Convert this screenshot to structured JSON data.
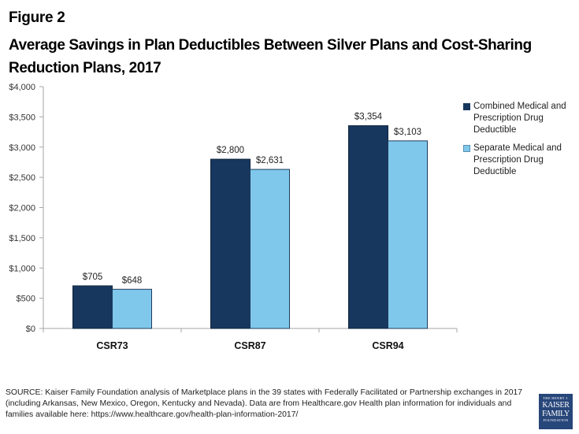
{
  "figure_label": "Figure 2",
  "title": "Average Savings in Plan Deductibles Between Silver Plans and Cost-Sharing Reduction Plans, 2017",
  "chart_data": {
    "type": "bar",
    "title": "Average Savings in Plan Deductibles Between Silver Plans and Cost-Sharing Reduction Plans, 2017",
    "xlabel": "",
    "ylabel": "",
    "categories": [
      "CSR73",
      "CSR87",
      "CSR94"
    ],
    "series": [
      {
        "name": "Combined Medical and Prescription Drug Deductible",
        "color": "#17375e",
        "values": [
          705,
          2800,
          3354
        ],
        "labels": [
          "$705",
          "$2,800",
          "$3,354"
        ]
      },
      {
        "name": "Separate Medical and Prescription Drug Deductible",
        "color": "#7fc8ec",
        "values": [
          648,
          2631,
          3103
        ],
        "labels": [
          "$648",
          "$2,631",
          "$3,103"
        ]
      }
    ],
    "ylim": [
      0,
      4000
    ],
    "yticks": [
      0,
      500,
      1000,
      1500,
      2000,
      2500,
      3000,
      3500,
      4000
    ],
    "ytick_labels": [
      "$0",
      "$500",
      "$1,000",
      "$1,500",
      "$2,000",
      "$2,500",
      "$3,000",
      "$3,500",
      "$4,000"
    ],
    "grid": false,
    "legend_position": "right"
  },
  "legend": [
    {
      "label": "Combined Medical and Prescription Drug Deductible",
      "color": "#17375e"
    },
    {
      "label": "Separate Medical and Prescription Drug Deductible",
      "color": "#7fc8ec"
    }
  ],
  "source_text": "SOURCE: Kaiser Family Foundation analysis of Marketplace plans in the 39 states with Federally Facilitated or Partnership exchanges in 2017 (including Arkansas, New Mexico, Oregon, Kentucky and Nevada).  Data are from Healthcare.gov Health plan information for individuals and families available here: https://www.healthcare.gov/health-plan-information-2017/",
  "logo": {
    "line1": "THE HENRY J.",
    "line2": "KAISER",
    "line3": "FAMILY",
    "line4": "FOUNDATION"
  }
}
